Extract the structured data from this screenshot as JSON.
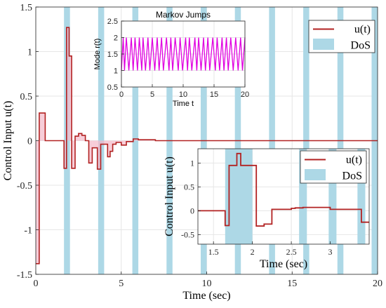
{
  "chart_data": [
    {
      "type": "line",
      "role": "main",
      "xlabel": "Time (sec)",
      "ylabel": "Control Input u(t)",
      "xlim": [
        0,
        20
      ],
      "ylim": [
        -1.5,
        1.5
      ],
      "xticks": [
        "0",
        "5",
        "10",
        "15",
        "20"
      ],
      "yticks": [
        "-1.5",
        "-1",
        "-0.5",
        "0",
        "0.5",
        "1",
        "1.5"
      ],
      "grid": true,
      "legend": {
        "placement": "top-right",
        "entries": [
          "u(t)",
          "DoS"
        ]
      },
      "dos_intervals": [
        [
          1.65,
          2.0
        ],
        [
          3.65,
          4.0
        ],
        [
          5.65,
          6.0
        ],
        [
          7.65,
          8.0
        ],
        [
          9.65,
          10.0
        ],
        [
          11.65,
          12.0
        ],
        [
          13.65,
          14.0
        ],
        [
          15.65,
          16.0
        ],
        [
          17.65,
          18.0
        ],
        [
          19.65,
          20.0
        ]
      ],
      "series": [
        {
          "name": "u(t)",
          "step": true,
          "x": [
            0,
            0.2,
            0.2,
            0.55,
            0.55,
            1.65,
            1.65,
            1.8,
            1.8,
            1.95,
            1.95,
            2.1,
            2.1,
            2.3,
            2.3,
            2.5,
            2.5,
            2.7,
            2.7,
            2.9,
            2.9,
            3.1,
            3.1,
            3.3,
            3.3,
            3.6,
            3.6,
            3.8,
            3.8,
            4.0,
            4.0,
            4.2,
            4.2,
            4.35,
            4.35,
            4.5,
            4.5,
            4.7,
            4.7,
            5.0,
            5.0,
            5.3,
            5.3,
            5.7,
            5.7,
            6.0,
            6.0,
            7.0,
            7.0,
            20.0
          ],
          "y": [
            -1.38,
            -1.38,
            0.31,
            0.31,
            0.0,
            0.0,
            -0.31,
            -0.31,
            1.27,
            1.27,
            0.95,
            0.95,
            -0.31,
            -0.31,
            0.05,
            0.05,
            0.08,
            0.08,
            0.06,
            0.06,
            0.0,
            0.0,
            -0.25,
            -0.25,
            -0.08,
            -0.08,
            -0.32,
            -0.32,
            -0.04,
            -0.04,
            -0.04,
            -0.04,
            -0.18,
            -0.18,
            -0.12,
            -0.12,
            -0.04,
            -0.04,
            -0.02,
            -0.02,
            -0.05,
            -0.05,
            -0.01,
            -0.01,
            0.02,
            0.02,
            0.01,
            0.01,
            0.0,
            0.0
          ]
        }
      ]
    },
    {
      "type": "line",
      "role": "inset-markov",
      "title": "Markov Jumps",
      "xlabel": "Time t",
      "ylabel": "Mode r(t)",
      "xlim": [
        0,
        20
      ],
      "ylim": [
        0.5,
        2.5
      ],
      "xticks": [
        "0",
        "5",
        "10",
        "15",
        "20"
      ],
      "yticks": [
        "0.5",
        "1",
        "1.5",
        "2",
        "2.5"
      ],
      "grid": true,
      "series": [
        {
          "step": true,
          "x": [
            0,
            0.3,
            0.5,
            0.8,
            1.2,
            1.6,
            1.9,
            2.2,
            2.6,
            2.9,
            3.3,
            3.5,
            3.9,
            4.3,
            4.6,
            5.0,
            5.4,
            5.8,
            6.1,
            6.5,
            6.8,
            7.3,
            7.7,
            8.0,
            8.3,
            8.7,
            9.2,
            9.5,
            9.9,
            10.4,
            10.7,
            11.0,
            11.4,
            11.9,
            12.2,
            12.5,
            12.9,
            13.3,
            13.6,
            14.0,
            14.3,
            14.8,
            15.2,
            15.5,
            15.9,
            16.3,
            16.6,
            17.0,
            17.3,
            17.7,
            18.1,
            18.5,
            18.9,
            19.3,
            19.6,
            20.0
          ],
          "y": [
            1,
            2,
            1,
            2,
            1,
            2,
            1,
            2,
            1,
            2,
            1,
            2,
            1,
            2,
            1,
            2,
            1,
            2,
            1,
            2,
            1,
            2,
            1,
            2,
            1,
            2,
            1,
            2,
            1,
            2,
            1,
            2,
            1,
            2,
            1,
            2,
            1,
            2,
            1,
            2,
            1,
            2,
            1,
            2,
            1,
            2,
            1,
            2,
            1,
            2,
            1,
            2,
            1,
            2,
            1,
            2
          ]
        }
      ]
    },
    {
      "type": "line",
      "role": "inset-zoom",
      "xlabel": "Time (sec)",
      "ylabel": "Control Input u(t)",
      "xlim": [
        1.3,
        3.5
      ],
      "ylim": [
        -0.7,
        1.3
      ],
      "xticks": [
        "1.5",
        "2",
        "2.5",
        "3"
      ],
      "yticks": [
        "-0.5",
        "0",
        "0.5",
        "1"
      ],
      "grid": true,
      "legend": {
        "placement": "top-right",
        "entries": [
          "u(t)",
          "DoS"
        ]
      },
      "dos_intervals": [
        [
          1.65,
          2.0
        ],
        [
          2.6,
          2.7
        ],
        [
          2.98,
          3.08
        ],
        [
          3.35,
          3.45
        ]
      ],
      "series": [
        {
          "name": "u(t)",
          "step": true,
          "x": [
            1.3,
            1.65,
            1.65,
            1.7,
            1.7,
            1.8,
            1.8,
            1.85,
            1.85,
            2.05,
            2.05,
            2.15,
            2.15,
            2.25,
            2.25,
            2.5,
            2.5,
            2.55,
            2.55,
            2.65,
            2.65,
            3.0,
            3.0,
            3.4,
            3.4,
            3.5
          ],
          "y": [
            0.0,
            0.0,
            -0.31,
            -0.31,
            0.95,
            0.95,
            1.2,
            1.2,
            0.95,
            0.95,
            -0.32,
            -0.32,
            -0.28,
            -0.28,
            0.03,
            0.03,
            0.05,
            0.05,
            0.06,
            0.06,
            0.07,
            0.07,
            0.03,
            0.03,
            -0.24,
            -0.24
          ]
        }
      ]
    }
  ],
  "colors": {
    "line": "#b22222",
    "dos_fill": "#add8e6",
    "markov_line": "#e000e0",
    "axis": "#262626",
    "grid": "#e6e6e6",
    "pink_bar": "#f4b8c8"
  }
}
